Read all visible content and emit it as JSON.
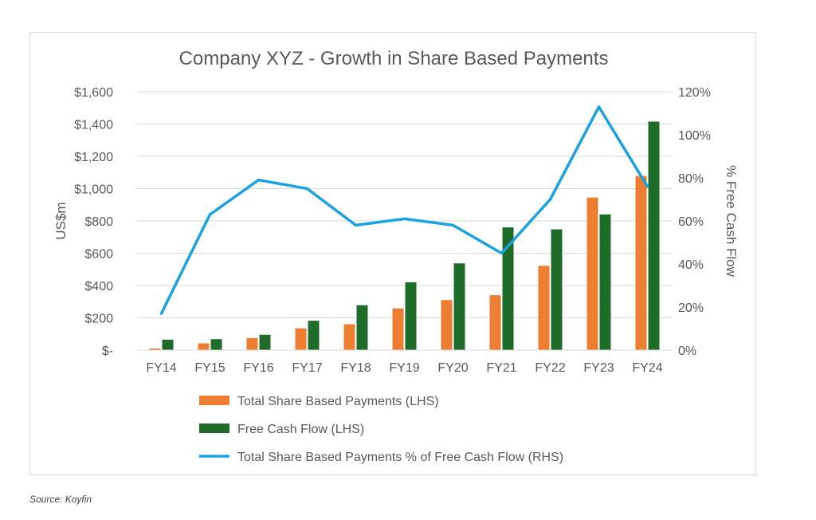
{
  "chart_data": {
    "type": "bar",
    "title": "Company XYZ - Growth in Share Based Payments",
    "categories": [
      "FY14",
      "FY15",
      "FY16",
      "FY17",
      "FY18",
      "FY19",
      "FY20",
      "FY21",
      "FY22",
      "FY23",
      "FY24"
    ],
    "ylabel": "US$m",
    "ylabel_right": "% Free Cash Flow",
    "ylim": [
      0,
      1600
    ],
    "ylim_right": [
      0,
      120
    ],
    "y_ticks": [
      "$-",
      "$200",
      "$400",
      "$600",
      "$800",
      "$1,000",
      "$1,200",
      "$1,400",
      "$1,600"
    ],
    "y_ticks_right": [
      "0%",
      "20%",
      "40%",
      "60%",
      "80%",
      "100%",
      "120%"
    ],
    "grid": true,
    "legend_position": "bottom",
    "series": [
      {
        "name": "Total Share Based Payments (LHS)",
        "type": "bar",
        "axis": "left",
        "color": "#ed7d31",
        "values": [
          10,
          42,
          75,
          135,
          160,
          258,
          310,
          340,
          522,
          945,
          1078
        ]
      },
      {
        "name": "Free Cash Flow (LHS)",
        "type": "bar",
        "axis": "left",
        "color": "#1e6b2a",
        "values": [
          65,
          68,
          95,
          182,
          278,
          420,
          537,
          760,
          748,
          840,
          1415
        ]
      },
      {
        "name": "Total Share Based Payments % of Free Cash Flow (RHS)",
        "type": "line",
        "axis": "right",
        "color": "#1aa3df",
        "values": [
          17,
          63,
          79,
          75,
          58,
          61,
          58,
          45,
          70,
          113,
          76
        ]
      }
    ]
  },
  "source": "Source: Koyfin"
}
